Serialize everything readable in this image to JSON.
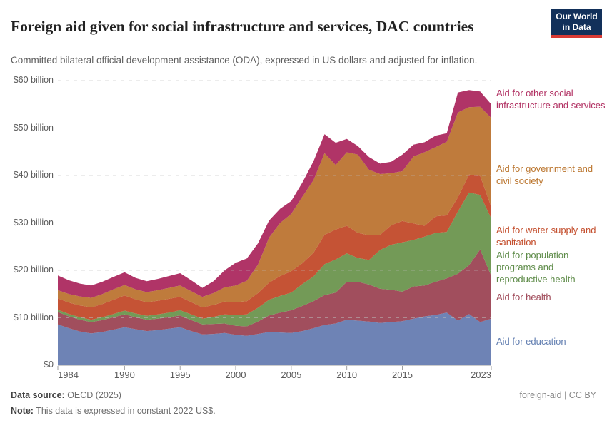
{
  "header": {
    "title": "Foreign aid given for social infrastructure and services, DAC countries",
    "subtitle": "Committed bilateral official development assistance (ODA), expressed in US dollars and adjusted for inflation.",
    "logo": {
      "line1": "Our World",
      "line2": "in Data",
      "bg_color": "#12305a",
      "bar_color": "#d93a34"
    }
  },
  "footer": {
    "source_label": "Data source:",
    "source_value": " OECD (2025)",
    "note_label": "Note:",
    "note_value": " This data is expressed in constant 2022 US$.",
    "attribution": "foreign-aid | CC BY"
  },
  "chart_data": {
    "type": "area",
    "stacked": true,
    "title": "Foreign aid given for social infrastructure and services, DAC countries",
    "xlabel": "",
    "ylabel": "Committed bilateral ODA, constant 2022 US$",
    "grid": "dashed",
    "legend_position": "right",
    "ylim": [
      0,
      60
    ],
    "unit": "billion US$",
    "x": [
      1984,
      1985,
      1986,
      1987,
      1988,
      1989,
      1990,
      1991,
      1992,
      1993,
      1994,
      1995,
      1996,
      1997,
      1998,
      1999,
      2000,
      2001,
      2002,
      2003,
      2004,
      2005,
      2006,
      2007,
      2008,
      2009,
      2010,
      2011,
      2012,
      2013,
      2014,
      2015,
      2016,
      2017,
      2018,
      2019,
      2020,
      2021,
      2022,
      2023
    ],
    "x_ticks": [
      1984,
      1990,
      1995,
      2000,
      2005,
      2010,
      2015,
      2023
    ],
    "y_ticks": [
      {
        "value": 0,
        "label": "$0"
      },
      {
        "value": 10,
        "label": "$10 billion"
      },
      {
        "value": 20,
        "label": "$20 billion"
      },
      {
        "value": 30,
        "label": "$30 billion"
      },
      {
        "value": 40,
        "label": "$40 billion"
      },
      {
        "value": 50,
        "label": "$50 billion"
      },
      {
        "value": 60,
        "label": "$60 billion"
      }
    ],
    "series": [
      {
        "id": "education",
        "label": "Aid for education",
        "color": "#6e83b5",
        "text_color": "#6480b2",
        "values": [
          8.6,
          7.8,
          7.1,
          6.7,
          7.0,
          7.5,
          8.0,
          7.6,
          7.2,
          7.4,
          7.7,
          8.0,
          7.2,
          6.5,
          6.6,
          6.8,
          6.4,
          6.2,
          6.6,
          7.0,
          6.9,
          6.8,
          7.2,
          7.8,
          8.5,
          8.8,
          9.6,
          9.4,
          9.2,
          8.9,
          9.1,
          9.3,
          9.8,
          10.3,
          10.6,
          11.1,
          9.4,
          10.8,
          9.1,
          9.8
        ]
      },
      {
        "id": "health",
        "label": "Aid for health",
        "color": "#a14e5d",
        "text_color": "#a04b5a",
        "values": [
          2.6,
          2.5,
          2.5,
          2.4,
          2.5,
          2.6,
          2.7,
          2.5,
          2.4,
          2.4,
          2.4,
          2.5,
          2.3,
          2.1,
          2.1,
          2.0,
          1.9,
          2.0,
          2.6,
          3.5,
          4.2,
          4.8,
          5.3,
          5.7,
          6.3,
          6.5,
          8.0,
          8.2,
          7.8,
          7.2,
          6.8,
          6.2,
          6.8,
          6.5,
          7.0,
          7.2,
          9.9,
          10.3,
          15.3,
          9.0
        ]
      },
      {
        "id": "population",
        "label": "Aid for population programs and reproductive health",
        "color": "#739a57",
        "text_color": "#5f8c4a",
        "values": [
          0.5,
          0.5,
          0.5,
          0.5,
          0.6,
          0.7,
          0.8,
          0.8,
          0.8,
          0.9,
          1.0,
          1.1,
          1.2,
          1.2,
          1.5,
          1.9,
          2.3,
          2.5,
          2.9,
          3.3,
          3.5,
          3.7,
          4.6,
          5.2,
          6.5,
          7.0,
          6.0,
          5.0,
          5.2,
          8.2,
          9.5,
          10.4,
          9.8,
          10.3,
          10.3,
          9.8,
          13.1,
          15.3,
          11.5,
          12.1
        ]
      },
      {
        "id": "water",
        "label": "Aid for water supply and sanitation",
        "color": "#c55335",
        "text_color": "#c44f2e",
        "values": [
          2.4,
          2.4,
          2.5,
          2.6,
          2.8,
          3.0,
          3.2,
          3.0,
          2.9,
          2.9,
          2.9,
          2.8,
          2.6,
          2.4,
          2.5,
          2.7,
          2.7,
          2.8,
          3.1,
          3.6,
          4.2,
          4.5,
          4.4,
          5.0,
          6.2,
          6.3,
          5.8,
          5.3,
          5.2,
          3.2,
          4.1,
          4.5,
          3.5,
          2.3,
          3.5,
          3.5,
          3.0,
          3.8,
          4.0,
          2.5
        ]
      },
      {
        "id": "government",
        "label": "Aid for government and civil society",
        "color": "#bf7b3c",
        "text_color": "#bb762f",
        "values": [
          1.7,
          1.8,
          1.9,
          2.0,
          2.1,
          2.2,
          2.2,
          2.1,
          2.1,
          2.2,
          2.3,
          2.4,
          2.3,
          2.2,
          2.5,
          3.0,
          3.5,
          4.3,
          6.0,
          9.5,
          11.2,
          12.1,
          14.0,
          15.3,
          17.2,
          13.6,
          15.5,
          16.5,
          13.8,
          12.8,
          11.0,
          10.5,
          14.1,
          15.5,
          14.6,
          15.5,
          17.9,
          14.2,
          14.6,
          18.7
        ]
      },
      {
        "id": "other",
        "label": "Aid for other social infrastructure and services",
        "color": "#b03467",
        "text_color": "#b13062",
        "values": [
          3.1,
          2.9,
          2.7,
          2.6,
          2.6,
          2.6,
          2.7,
          2.4,
          2.3,
          2.4,
          2.5,
          2.6,
          2.3,
          1.9,
          2.5,
          3.6,
          4.8,
          4.7,
          4.5,
          3.6,
          3.0,
          2.7,
          3.0,
          4.0,
          4.0,
          4.7,
          2.8,
          1.8,
          2.7,
          2.2,
          2.4,
          3.5,
          2.5,
          2.1,
          2.4,
          1.8,
          4.2,
          3.6,
          3.2,
          2.9
        ]
      }
    ]
  }
}
